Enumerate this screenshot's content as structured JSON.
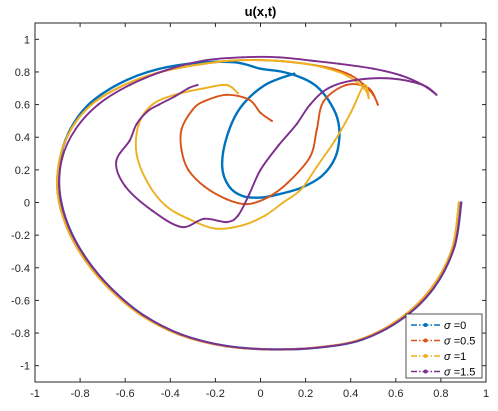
{
  "chart_data": {
    "type": "line",
    "title": "u(x,t)",
    "xlabel": "",
    "ylabel": "",
    "xlim": [
      -1,
      1
    ],
    "ylim": [
      -1.1,
      1.1
    ],
    "x_ticks": [
      -1,
      -0.8,
      -0.6,
      -0.4,
      -0.2,
      0,
      0.2,
      0.4,
      0.6,
      0.8,
      1
    ],
    "y_ticks": [
      -1,
      -0.8,
      -0.6,
      -0.4,
      -0.2,
      0,
      0.2,
      0.4,
      0.6,
      0.8,
      1
    ],
    "grid": false,
    "legend_position": "bottom-right",
    "series": [
      {
        "name": "σ =0",
        "sigma_label": "=0",
        "color": "#0072BD",
        "style": "dash-dot with point markers",
        "x": [
          0.89,
          0.86,
          0.77,
          0.63,
          0.45,
          0.25,
          0.05,
          -0.15,
          -0.35,
          -0.52,
          -0.66,
          -0.77,
          -0.85,
          -0.89,
          -0.89,
          -0.85,
          -0.77,
          -0.65,
          -0.5,
          -0.32,
          -0.12,
          0,
          0.1,
          0.19,
          0.25,
          0.3,
          0.34,
          0.35,
          0.33,
          0.27,
          0.18,
          0.08,
          0,
          -0.08,
          -0.14,
          -0.17,
          -0.15,
          -0.09,
          0.02,
          0.15
        ],
        "y": [
          0,
          -0.27,
          -0.52,
          -0.71,
          -0.84,
          -0.89,
          -0.9,
          -0.88,
          -0.81,
          -0.69,
          -0.53,
          -0.35,
          -0.15,
          0.05,
          0.25,
          0.43,
          0.59,
          0.71,
          0.8,
          0.85,
          0.86,
          0.82,
          0.8,
          0.76,
          0.71,
          0.63,
          0.52,
          0.4,
          0.27,
          0.16,
          0.09,
          0.05,
          0.03,
          0.04,
          0.1,
          0.22,
          0.4,
          0.58,
          0.72,
          0.79
        ]
      },
      {
        "name": "σ=0.5",
        "sigma_label": "=0.5",
        "color": "#D95319",
        "style": "dash-dot with point markers",
        "x": [
          0.88,
          0.85,
          0.76,
          0.62,
          0.44,
          0.24,
          0.04,
          -0.16,
          -0.36,
          -0.53,
          -0.67,
          -0.78,
          -0.86,
          -0.9,
          -0.89,
          -0.84,
          -0.75,
          -0.62,
          -0.47,
          -0.3,
          -0.12,
          0.05,
          0.2,
          0.32,
          0.4,
          0.46,
          0.5,
          0.52,
          0.48,
          0.38,
          0.28,
          0.25,
          0.22,
          0.12,
          0.03,
          -0.06,
          -0.15,
          -0.25,
          -0.32,
          -0.35,
          -0.35,
          -0.3,
          -0.25,
          -0.15,
          -0.05,
          0.0,
          0.05
        ],
        "y": [
          0,
          -0.28,
          -0.52,
          -0.71,
          -0.84,
          -0.89,
          -0.9,
          -0.88,
          -0.81,
          -0.69,
          -0.53,
          -0.35,
          -0.15,
          0.06,
          0.27,
          0.45,
          0.6,
          0.71,
          0.79,
          0.84,
          0.87,
          0.87,
          0.85,
          0.82,
          0.78,
          0.72,
          0.66,
          0.6,
          0.7,
          0.72,
          0.62,
          0.45,
          0.28,
          0.12,
          0.03,
          -0.01,
          0.02,
          0.1,
          0.2,
          0.32,
          0.45,
          0.57,
          0.62,
          0.66,
          0.63,
          0.55,
          0.5
        ]
      },
      {
        "name": "σ=1",
        "sigma_label": "=1",
        "color": "#EDB120",
        "style": "dash-dot with point markers",
        "x": [
          0.88,
          0.85,
          0.76,
          0.62,
          0.44,
          0.24,
          0.04,
          -0.16,
          -0.36,
          -0.53,
          -0.67,
          -0.78,
          -0.86,
          -0.9,
          -0.89,
          -0.84,
          -0.75,
          -0.62,
          -0.47,
          -0.3,
          -0.12,
          0.05,
          0.2,
          0.3,
          0.38,
          0.46,
          0.48,
          0.46,
          0.4,
          0.33,
          0.25,
          0.18,
          0.1,
          0.02,
          -0.08,
          -0.2,
          -0.32,
          -0.42,
          -0.5,
          -0.55,
          -0.54,
          -0.48,
          -0.38,
          -0.25,
          -0.15,
          -0.1
        ],
        "y": [
          0,
          -0.28,
          -0.52,
          -0.71,
          -0.84,
          -0.89,
          -0.9,
          -0.88,
          -0.81,
          -0.69,
          -0.53,
          -0.35,
          -0.15,
          0.06,
          0.27,
          0.45,
          0.6,
          0.71,
          0.79,
          0.84,
          0.87,
          0.87,
          0.85,
          0.82,
          0.78,
          0.7,
          0.64,
          0.72,
          0.55,
          0.38,
          0.22,
          0.08,
          0.0,
          -0.08,
          -0.14,
          -0.16,
          -0.1,
          -0.02,
          0.12,
          0.3,
          0.48,
          0.6,
          0.66,
          0.7,
          0.72,
          0.67
        ]
      },
      {
        "name": "σ=1.5",
        "sigma_label": "=1.5",
        "color": "#7E2F8E",
        "style": "dash-dot with point markers",
        "x": [
          0.89,
          0.86,
          0.77,
          0.63,
          0.45,
          0.25,
          0.05,
          -0.15,
          -0.35,
          -0.52,
          -0.66,
          -0.77,
          -0.85,
          -0.89,
          -0.88,
          -0.82,
          -0.72,
          -0.58,
          -0.42,
          -0.25,
          -0.08,
          0.08,
          0.22,
          0.35,
          0.5,
          0.62,
          0.72,
          0.78,
          0.72,
          0.58,
          0.42,
          0.3,
          0.22,
          0.16,
          0.08,
          0.0,
          -0.05,
          -0.1,
          -0.15,
          -0.25,
          -0.35,
          -0.48,
          -0.6,
          -0.64,
          -0.58,
          -0.55,
          -0.5,
          -0.45,
          -0.38,
          -0.32,
          -0.28
        ],
        "y": [
          0,
          -0.27,
          -0.52,
          -0.71,
          -0.84,
          -0.89,
          -0.9,
          -0.88,
          -0.81,
          -0.69,
          -0.53,
          -0.35,
          -0.15,
          0.06,
          0.27,
          0.45,
          0.6,
          0.72,
          0.81,
          0.87,
          0.89,
          0.89,
          0.87,
          0.85,
          0.82,
          0.78,
          0.72,
          0.66,
          0.72,
          0.76,
          0.75,
          0.7,
          0.6,
          0.48,
          0.35,
          0.2,
          0.05,
          -0.08,
          -0.12,
          -0.1,
          -0.15,
          -0.05,
          0.1,
          0.25,
          0.38,
          0.48,
          0.56,
          0.6,
          0.65,
          0.7,
          0.72
        ]
      }
    ]
  }
}
